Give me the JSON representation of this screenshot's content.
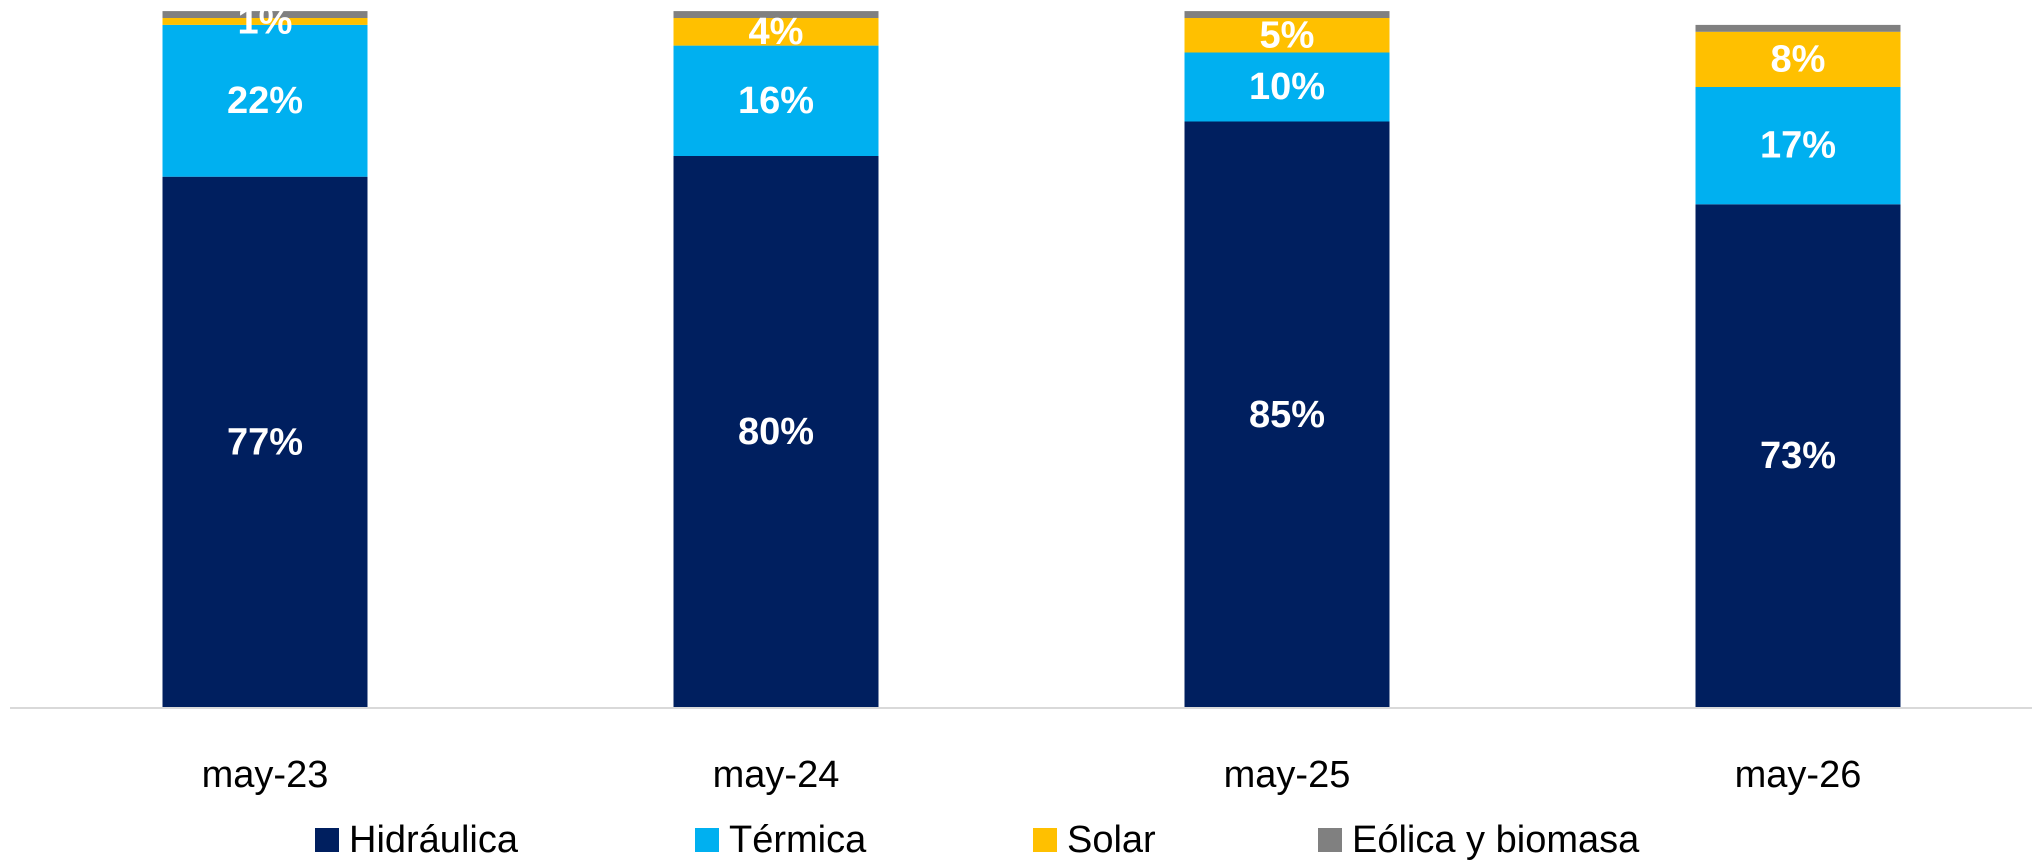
{
  "chart_data": {
    "type": "bar",
    "stacked": true,
    "categories": [
      "may-23",
      "may-24",
      "may-25",
      "may-26"
    ],
    "series": [
      {
        "name": "Hidráulica",
        "color": "#001F5F",
        "values": [
          77,
          80,
          85,
          73
        ],
        "labels": [
          "77%",
          "80%",
          "85%",
          "73%"
        ]
      },
      {
        "name": "Térmica",
        "color": "#00B0F0",
        "values": [
          22,
          16,
          10,
          17
        ],
        "labels": [
          "22%",
          "16%",
          "10%",
          "17%"
        ]
      },
      {
        "name": "Solar",
        "color": "#FFC000",
        "values": [
          1,
          4,
          5,
          8
        ],
        "labels": [
          "1%",
          "4%",
          "5%",
          "8%"
        ]
      },
      {
        "name": "Eólica y biomasa",
        "color": "#808080",
        "values": [
          1,
          1,
          1,
          1
        ],
        "labels": [
          "",
          "",
          "",
          ""
        ]
      }
    ],
    "title": "",
    "xlabel": "",
    "ylabel": "",
    "ylim": [
      0,
      100
    ],
    "grid": false,
    "legend_position": "bottom"
  }
}
